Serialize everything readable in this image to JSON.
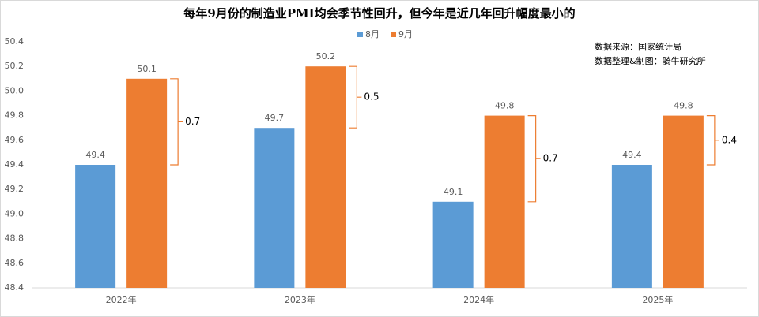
{
  "chart_data": {
    "type": "bar",
    "title": "每年9月份的制造业PMI均会季节性回升，但今年是近几年回升幅度最小的",
    "categories": [
      "2022年",
      "2023年",
      "2024年",
      "2025年"
    ],
    "series": [
      {
        "name": "8月",
        "color": "#5b9bd5",
        "values": [
          49.4,
          49.7,
          49.1,
          49.4
        ]
      },
      {
        "name": "9月",
        "color": "#ed7d31",
        "values": [
          50.1,
          50.2,
          49.8,
          49.8
        ]
      }
    ],
    "annotations": [
      "0.7",
      "0.5",
      "0.7",
      "0.4"
    ],
    "notes": [
      "数据来源：国家统计局",
      "数据整理&制图：骑牛研究所"
    ],
    "ylim": [
      48.4,
      50.4
    ],
    "yticks": [
      48.4,
      48.6,
      48.8,
      {
        "value": 49,
        "label": "49.0"
      },
      49.2,
      49.4,
      49.6,
      49.8,
      {
        "value": 50,
        "label": "50.0"
      },
      50.2,
      50.4
    ],
    "grid": false,
    "legend": "top"
  }
}
